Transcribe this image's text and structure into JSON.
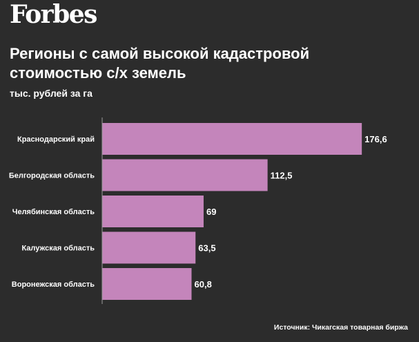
{
  "brand": "Forbes",
  "colors": {
    "background": "#2c2c2c",
    "bar": "#c485bb",
    "axis": "#9a9a9a",
    "text": "#ffffff"
  },
  "chart_data": {
    "type": "bar",
    "orientation": "horizontal",
    "title": "Регионы с самой высокой кадастровой стоимостью с/х земель",
    "subtitle": "тыс. рублей за га",
    "categories": [
      "Краснодарский край",
      "Белгородская область",
      "Челябинская область",
      "Калужская область",
      "Воронежская область"
    ],
    "values": [
      176.6,
      112.5,
      69,
      63.5,
      60.8
    ],
    "value_labels": [
      "176,6",
      "112,5",
      "69",
      "63,5",
      "60,8"
    ],
    "xlim": [
      0,
      200
    ],
    "grid": false
  },
  "source": "Источник: Чикагская товарная биржа"
}
